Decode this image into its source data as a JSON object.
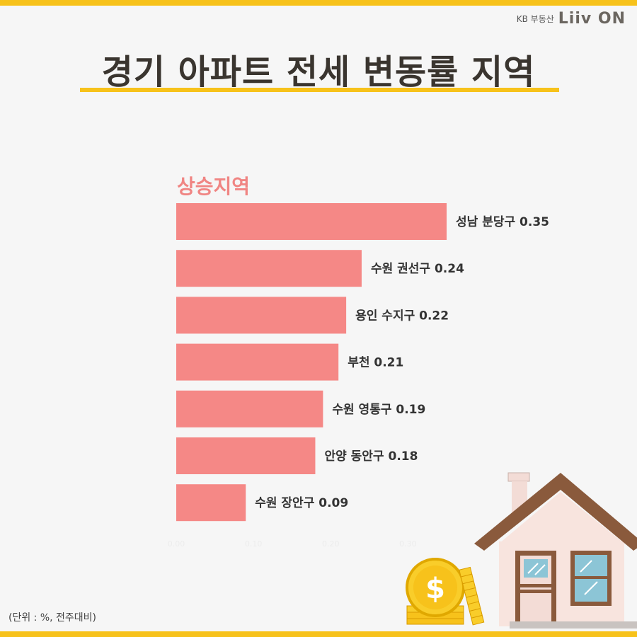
{
  "brand": {
    "kb": "KB 부동산",
    "logo": "Liiv ON"
  },
  "title": "경기 아파트 전세 변동률 지역",
  "section_label": "상승지역",
  "unit_note": "(단위 : %, 전주대비)",
  "colors": {
    "bar": "#f58886",
    "accent": "#f7c21b",
    "title": "#3a352f",
    "label": "#f08583"
  },
  "chart_data": {
    "type": "bar",
    "orientation": "horizontal",
    "categories": [
      "성남 분당구",
      "수원 권선구",
      "용인 수지구",
      "부천",
      "수원 영통구",
      "안양 동안구",
      "수원 장안구"
    ],
    "values": [
      0.35,
      0.24,
      0.22,
      0.21,
      0.19,
      0.18,
      0.09
    ],
    "bar_labels": [
      "성남 분당구 0.35",
      "수원 권선구 0.24",
      "용인 수지구 0.22",
      "부천 0.21",
      "수원 영통구 0.19",
      "안양 동안구 0.18",
      "수원 장안구 0.09"
    ],
    "tick_labels": [
      "0.00",
      "0.10",
      "0.20",
      "0.30"
    ],
    "xlim": [
      0,
      0.35
    ],
    "grid": false
  }
}
